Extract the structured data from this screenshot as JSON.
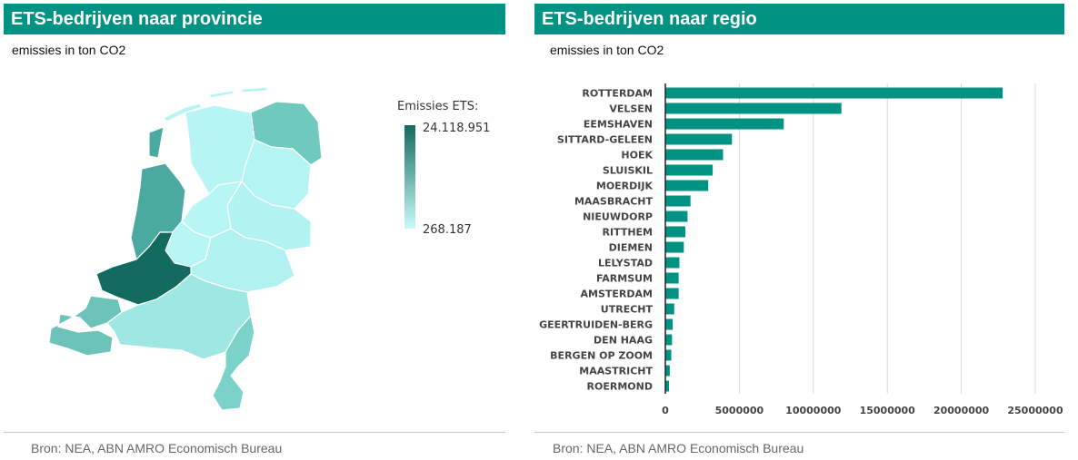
{
  "left_panel": {
    "title": "ETS-bedrijven naar provincie",
    "subtitle": "emissies in ton CO2",
    "source": "Bron: NEA, ABN AMRO Economisch Bureau",
    "legend": {
      "title": "Emissies ETS:",
      "max_label": "24.118.951",
      "min_label": "268.187",
      "color_max": "#136a5f",
      "color_min": "#c8fbfb"
    },
    "provinces": [
      {
        "id": "zuid-holland",
        "color": "#136a5f"
      },
      {
        "id": "noord-holland",
        "color": "#4aa9a0"
      },
      {
        "id": "groningen",
        "color": "#70c9bf"
      },
      {
        "id": "zeeland",
        "color": "#6cc3ba"
      },
      {
        "id": "limburg",
        "color": "#7ad2c8"
      },
      {
        "id": "friesland",
        "color": "#b6f5f4"
      },
      {
        "id": "drenthe",
        "color": "#b4f4f3"
      },
      {
        "id": "overijssel",
        "color": "#b2f2f1"
      },
      {
        "id": "flevoland",
        "color": "#b8f6f5"
      },
      {
        "id": "gelderland",
        "color": "#b1f1f0"
      },
      {
        "id": "utrecht",
        "color": "#b8f6f5"
      },
      {
        "id": "noord-brabant",
        "color": "#9fe7e2"
      }
    ]
  },
  "right_panel": {
    "title": "ETS-bedrijven naar regio",
    "subtitle": "emissies in ton CO2",
    "source": "Bron: NEA, ABN AMRO Economisch Bureau"
  },
  "chart_data": {
    "type": "bar",
    "orientation": "horizontal",
    "categories": [
      "ROTTERDAM",
      "VELSEN",
      "EEMSHAVEN",
      "SITTARD-GELEEN",
      "HOEK",
      "SLUISKIL",
      "MOERDIJK",
      "MAASBRACHT",
      "NIEUWDORP",
      "RITTHEM",
      "DIEMEN",
      "LELYSTAD",
      "FARMSUM",
      "AMSTERDAM",
      "UTRECHT",
      "GEERTRUIDEN-BERG",
      "DEN HAAG",
      "BERGEN OP ZOOM",
      "MAASTRICHT",
      "ROERMOND"
    ],
    "values": [
      22800000,
      11900000,
      8000000,
      4500000,
      3900000,
      3200000,
      2900000,
      1700000,
      1500000,
      1350000,
      1250000,
      950000,
      900000,
      900000,
      600000,
      500000,
      450000,
      400000,
      300000,
      250000
    ],
    "title": "ETS-bedrijven naar regio",
    "xlabel": "",
    "ylabel": "",
    "xlim": [
      0,
      25000000
    ],
    "xticks": [
      0,
      5000000,
      10000000,
      15000000,
      20000000,
      25000000
    ],
    "xtick_labels": [
      "0",
      "5000000",
      "10000000",
      "15000000",
      "20000000",
      "25000000"
    ],
    "grid": true,
    "bar_color": "#009383"
  }
}
